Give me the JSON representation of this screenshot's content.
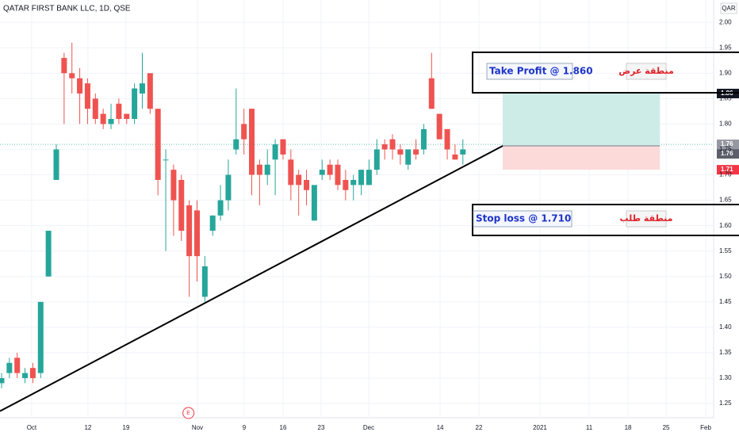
{
  "chart_data": {
    "type": "candlestick",
    "title": "QATAR FIRST BANK LLC, 1D, QSE",
    "currency": "QAR",
    "x": [
      0,
      1,
      2,
      3,
      4,
      5,
      6,
      7,
      8,
      9,
      10,
      11,
      12,
      13,
      14,
      15,
      16,
      17,
      18,
      19,
      20,
      21,
      22,
      23,
      24,
      25,
      26,
      27,
      28,
      29,
      30,
      31,
      32,
      33,
      34,
      35,
      36,
      37,
      38,
      39,
      40,
      41,
      42,
      43,
      44,
      45,
      46,
      47,
      48,
      49,
      50,
      51,
      52,
      53,
      54,
      55,
      56,
      57,
      58,
      59
    ],
    "open": [
      1.29,
      1.31,
      1.34,
      1.3,
      1.32,
      1.31,
      1.5,
      1.69,
      1.93,
      1.9,
      1.89,
      1.88,
      1.85,
      1.82,
      1.8,
      1.84,
      1.82,
      1.81,
      1.86,
      1.9,
      1.83,
      1.73,
      1.71,
      1.69,
      1.64,
      1.63,
      1.46,
      1.59,
      1.62,
      1.65,
      1.75,
      1.8,
      1.83,
      1.72,
      1.7,
      1.73,
      1.77,
      1.73,
      1.7,
      1.69,
      1.61,
      1.7,
      1.72,
      1.72,
      1.69,
      1.68,
      1.68,
      1.68,
      1.71,
      1.76,
      1.77,
      1.75,
      1.72,
      1.75,
      1.75,
      1.89,
      1.82,
      1.79,
      1.74,
      1.74
    ],
    "high": [
      1.31,
      1.34,
      1.35,
      1.32,
      1.33,
      1.45,
      1.59,
      1.76,
      1.94,
      1.96,
      1.91,
      1.89,
      1.86,
      1.83,
      1.84,
      1.85,
      1.82,
      1.88,
      1.94,
      1.9,
      1.83,
      1.75,
      1.72,
      1.7,
      1.65,
      1.65,
      1.54,
      1.62,
      1.68,
      1.73,
      1.87,
      1.83,
      1.83,
      1.73,
      1.75,
      1.77,
      1.77,
      1.75,
      1.71,
      1.71,
      1.68,
      1.73,
      1.73,
      1.73,
      1.71,
      1.7,
      1.71,
      1.73,
      1.77,
      1.77,
      1.78,
      1.76,
      1.75,
      1.77,
      1.8,
      1.94,
      1.82,
      1.79,
      1.76,
      1.77
    ],
    "low": [
      1.28,
      1.3,
      1.3,
      1.29,
      1.29,
      1.3,
      1.5,
      1.69,
      1.8,
      1.86,
      1.8,
      1.8,
      1.8,
      1.79,
      1.79,
      1.8,
      1.8,
      1.8,
      1.83,
      1.82,
      1.66,
      1.55,
      1.58,
      1.57,
      1.46,
      1.49,
      1.45,
      1.58,
      1.61,
      1.63,
      1.74,
      1.74,
      1.66,
      1.64,
      1.68,
      1.66,
      1.73,
      1.65,
      1.62,
      1.64,
      1.61,
      1.69,
      1.69,
      1.67,
      1.65,
      1.65,
      1.66,
      1.68,
      1.7,
      1.73,
      1.73,
      1.72,
      1.71,
      1.73,
      1.74,
      1.83,
      1.77,
      1.73,
      1.73,
      1.72
    ],
    "close": [
      1.3,
      1.33,
      1.31,
      1.31,
      1.3,
      1.45,
      1.59,
      1.75,
      1.9,
      1.89,
      1.86,
      1.83,
      1.81,
      1.8,
      1.81,
      1.81,
      1.81,
      1.87,
      1.88,
      1.83,
      1.69,
      1.73,
      1.65,
      1.59,
      1.54,
      1.54,
      1.52,
      1.62,
      1.65,
      1.7,
      1.77,
      1.77,
      1.7,
      1.7,
      1.72,
      1.76,
      1.74,
      1.68,
      1.68,
      1.67,
      1.68,
      1.71,
      1.7,
      1.68,
      1.67,
      1.69,
      1.71,
      1.71,
      1.75,
      1.75,
      1.75,
      1.74,
      1.75,
      1.74,
      1.79,
      1.83,
      1.77,
      1.75,
      1.73,
      1.75
    ],
    "up_color": "#26a69a",
    "down_color": "#ef5350",
    "xlim": [
      -0.2,
      91.07
    ],
    "xticks": [
      {
        "value": 3.85,
        "label": "Oct"
      },
      {
        "value": 11.05,
        "label": "12"
      },
      {
        "value": 15.92,
        "label": "19"
      },
      {
        "value": 25.05,
        "label": "Nov"
      },
      {
        "value": 31.03,
        "label": "9"
      },
      {
        "value": 36.0,
        "label": "16"
      },
      {
        "value": 40.87,
        "label": "23"
      },
      {
        "value": 46.96,
        "label": "Dec"
      },
      {
        "value": 56.09,
        "label": "14"
      },
      {
        "value": 61.05,
        "label": "22"
      },
      {
        "value": 68.86,
        "label": "2021"
      },
      {
        "value": 75.15,
        "label": "11"
      },
      {
        "value": 80.12,
        "label": "18"
      },
      {
        "value": 84.99,
        "label": "25"
      },
      {
        "value": 90.06,
        "label": "Feb"
      }
    ],
    "ylim": [
      1.222,
      2.044
    ],
    "yticks": [
      {
        "value": 2.0,
        "label": "2.00"
      },
      {
        "value": 1.95,
        "label": "1.95"
      },
      {
        "value": 1.9,
        "label": "1.90"
      },
      {
        "value": 1.85,
        "label": "1.85"
      },
      {
        "value": 1.8,
        "label": "1.80"
      },
      {
        "value": 1.75,
        "label": "1.75"
      },
      {
        "value": 1.7,
        "label": "1.70"
      },
      {
        "value": 1.65,
        "label": "1.65"
      },
      {
        "value": 1.6,
        "label": "1.60"
      },
      {
        "value": 1.55,
        "label": "1.55"
      },
      {
        "value": 1.5,
        "label": "1.50"
      },
      {
        "value": 1.45,
        "label": "1.45"
      },
      {
        "value": 1.4,
        "label": "1.40"
      },
      {
        "value": 1.35,
        "label": "1.35"
      },
      {
        "value": 1.3,
        "label": "1.30"
      },
      {
        "value": 1.25,
        "label": "1.25"
      }
    ],
    "grid": true,
    "position": {
      "x": [
        64.1,
        84.2
      ],
      "target": 1.86,
      "entry": 1.757,
      "stop": 1.71
    },
    "trendline": {
      "x": [
        -0.2,
        64.1
      ],
      "y": [
        1.235,
        1.757
      ]
    },
    "price_labels": [
      {
        "value": 1.86,
        "label": "1.86",
        "color": "#131722"
      },
      {
        "value": 1.76,
        "label": "1.76",
        "color": "#9598a1"
      },
      {
        "value": 1.76,
        "label": "1.76",
        "color": "#5d606b"
      },
      {
        "value": 1.71,
        "label": "1.71",
        "color": "#f23645"
      }
    ],
    "earnings_marker": {
      "x": 23.9,
      "label": "E"
    },
    "annotations": {
      "take_profit": "Take Profit @ 1.860",
      "supply_zone": "منطقة عرض",
      "stop_loss": "Stop loss @ 1.710",
      "demand_zone": "منطقة طلب"
    }
  }
}
